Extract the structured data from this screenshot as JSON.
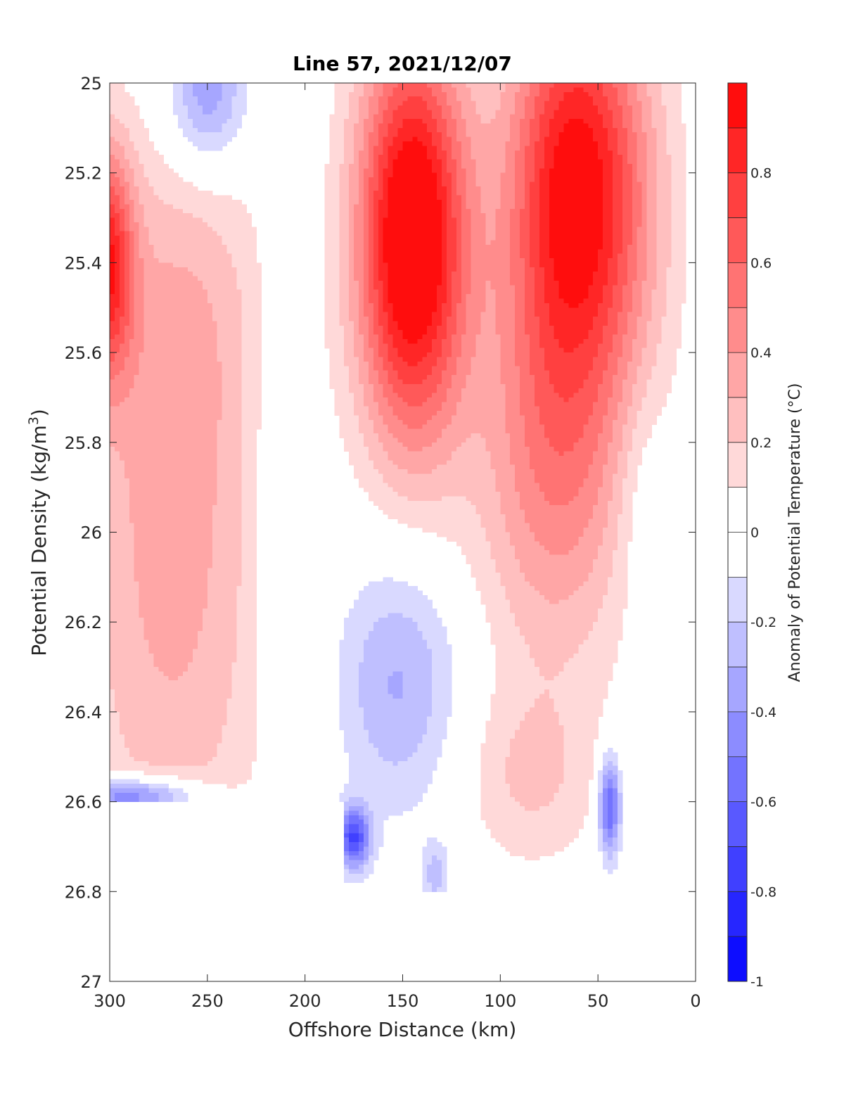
{
  "chart_data": {
    "type": "heatmap",
    "title": "Line 57, 2021/12/07",
    "xlabel": "Offshore Distance (km)",
    "ylabel_main": "Potential Density (kg/m",
    "ylabel_sup": "3",
    "ylabel_close": ")",
    "colorbar_label": "Anomaly of Potential Temperature (°C)",
    "xlim": [
      300,
      0
    ],
    "ylim": [
      25,
      27
    ],
    "y_reversed": true,
    "clim": [
      -1,
      1
    ],
    "contour_levels": [
      -1,
      -0.9,
      -0.8,
      -0.7,
      -0.6,
      -0.5,
      -0.4,
      -0.3,
      -0.2,
      -0.1,
      0,
      0.1,
      0.2,
      0.3,
      0.4,
      0.5,
      0.6,
      0.7,
      0.8,
      0.9,
      1
    ],
    "xticks": [
      300,
      250,
      200,
      150,
      100,
      50,
      0
    ],
    "xtick_labels": [
      "300",
      "250",
      "200",
      "150",
      "100",
      "50",
      "0"
    ],
    "yticks": [
      25,
      25.2,
      25.4,
      25.6,
      25.8,
      26,
      26.2,
      26.4,
      26.6,
      26.8,
      27
    ],
    "ytick_labels": [
      "25",
      "25.2",
      "25.4",
      "25.6",
      "25.8",
      "26",
      "26.2",
      "26.4",
      "26.6",
      "26.8",
      "27"
    ],
    "cbar_ticks": [
      -1,
      -0.8,
      -0.6,
      -0.4,
      -0.2,
      0,
      0.2,
      0.4,
      0.6,
      0.8
    ],
    "cbar_tick_labels": [
      "-1",
      "-0.8",
      "-0.6",
      "-0.4",
      "-0.2",
      "0",
      "0.2",
      "0.4",
      "0.6",
      "0.8"
    ],
    "features": [
      {
        "name": "warm-core-150km",
        "x": 145,
        "y": 25.35,
        "peak": 1.0
      },
      {
        "name": "warm-core-60km",
        "x": 62,
        "y": 25.25,
        "peak": 0.9
      },
      {
        "name": "warm-core-300km",
        "x": 298,
        "y": 25.45,
        "peak": 0.7
      },
      {
        "name": "cool-cell-250km",
        "x": 250,
        "y": 25.05,
        "peak": -0.4
      },
      {
        "name": "cool-cell-150km",
        "x": 152,
        "y": 26.33,
        "peak": -0.3
      },
      {
        "name": "cool-cell-170km-deep",
        "x": 175,
        "y": 26.68,
        "peak": -0.7
      },
      {
        "name": "cool-cell-45km-deep",
        "x": 44,
        "y": 26.62,
        "peak": -0.6
      },
      {
        "name": "cool-cell-300km-deep",
        "x": 285,
        "y": 26.58,
        "peak": -0.6
      }
    ],
    "data_extent_note": "No data below ~26.6 kg/m3 west of 180 km; no data below ~26.8 kg/m3 elsewhere"
  }
}
